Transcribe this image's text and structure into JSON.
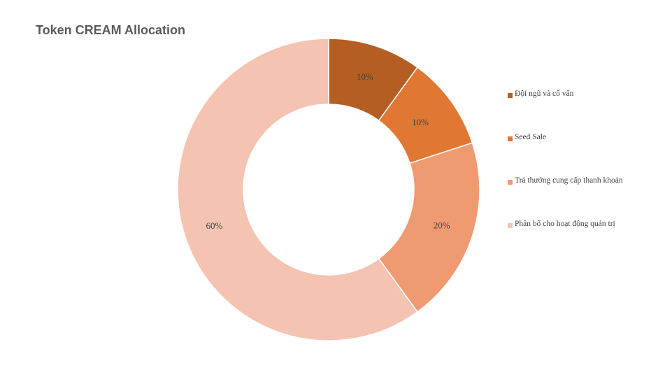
{
  "chart_data": {
    "type": "pie",
    "style": "donut",
    "title": "Token CREAM Allocation",
    "categories": [
      "Đội ngũ và cố vấn",
      "Seed Sale",
      "Trả thưởng cung cấp thanh khoản",
      "Phân bổ cho hoạt động quản trị"
    ],
    "values": [
      10,
      10,
      20,
      60
    ],
    "data_labels": [
      "10%",
      "10%",
      "20%",
      "60%"
    ],
    "colors": [
      "#B55E23",
      "#E07732",
      "#F09A71",
      "#F5C3B2"
    ],
    "legend_position": "right"
  }
}
